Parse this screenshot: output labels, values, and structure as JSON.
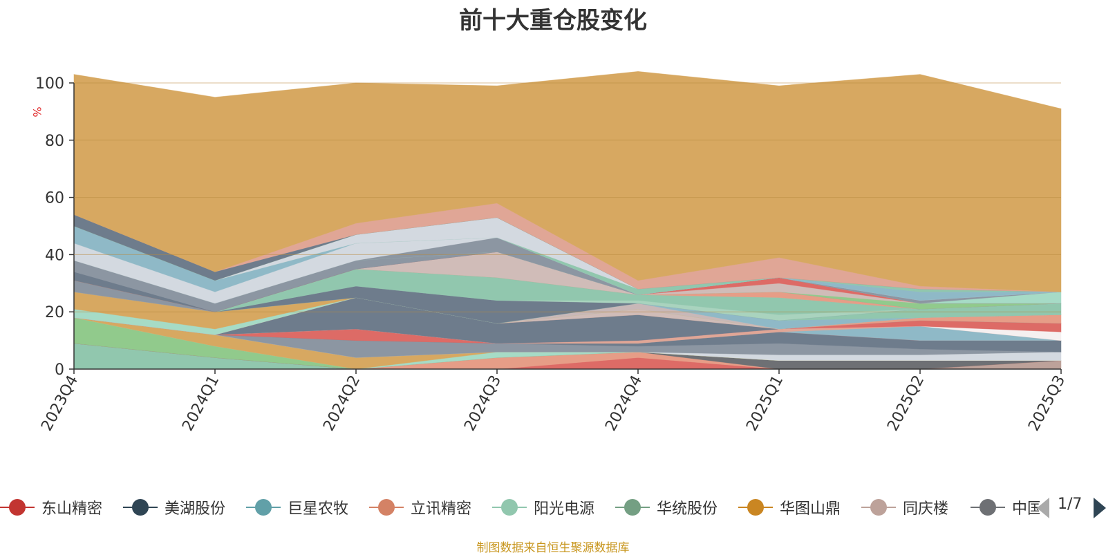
{
  "chart_data": {
    "type": "area",
    "title": "前十大重仓股变化",
    "ylabel": "%",
    "ylim": [
      0,
      100
    ],
    "yticks": [
      0,
      20,
      40,
      60,
      80,
      100
    ],
    "categories": [
      "2023Q4",
      "2024Q1",
      "2024Q2",
      "2024Q3",
      "2024Q4",
      "2025Q1",
      "2025Q2",
      "2025Q3"
    ],
    "series": [
      {
        "name": "layer-1",
        "color": "#91c7ae",
        "values": [
          9,
          4,
          0,
          0,
          0,
          0,
          0,
          0
        ]
      },
      {
        "name": "layer-2",
        "color": "#bda29a",
        "values": [
          0,
          0,
          0,
          0,
          0,
          0,
          0,
          3
        ]
      },
      {
        "name": "layer-3",
        "color": "#dd6b66",
        "values": [
          0,
          0,
          0,
          0,
          4,
          0,
          0,
          0
        ]
      },
      {
        "name": "layer-4",
        "color": "#e69d87",
        "values": [
          0,
          0,
          0,
          4,
          2,
          0,
          0,
          0
        ]
      },
      {
        "name": "layer-5",
        "color": "#6e7074",
        "values": [
          0,
          0,
          0,
          0,
          0,
          3,
          3,
          0
        ]
      },
      {
        "name": "layer-6",
        "color": "#91ca8c",
        "values": [
          9,
          4,
          0,
          0,
          0,
          0,
          0,
          0
        ]
      },
      {
        "name": "layer-7",
        "color": "#a6dbc6",
        "values": [
          0,
          0,
          0,
          2,
          0,
          0,
          0,
          0
        ]
      },
      {
        "name": "layer-8",
        "color": "#d7a861",
        "values": [
          0,
          4,
          4,
          0,
          0,
          0,
          0,
          0
        ]
      },
      {
        "name": "layer-9",
        "color": "#d3d9e0",
        "values": [
          0,
          0,
          0,
          0,
          0,
          2,
          2,
          3
        ]
      },
      {
        "name": "layer-10",
        "color": "#8c96a2",
        "values": [
          0,
          0,
          6,
          3,
          2,
          4,
          2,
          0
        ]
      },
      {
        "name": "layer-11",
        "color": "#6e7c8c",
        "values": [
          0,
          0,
          0,
          0,
          1,
          4,
          3,
          4
        ]
      },
      {
        "name": "layer-12",
        "color": "#dd6b66",
        "values": [
          0,
          0,
          4,
          0,
          0,
          0,
          0,
          0
        ]
      },
      {
        "name": "layer-13",
        "color": "#8fb9c7",
        "values": [
          0,
          0,
          0,
          0,
          0,
          0,
          5,
          0
        ]
      },
      {
        "name": "layer-14",
        "color": "#e0a696",
        "values": [
          0,
          0,
          0,
          0,
          1,
          1,
          0,
          0
        ]
      },
      {
        "name": "layer-15",
        "color": "#f5f0f0",
        "values": [
          0,
          0,
          0,
          0,
          0,
          0,
          0,
          3
        ]
      },
      {
        "name": "layer-16",
        "color": "#dd6b66",
        "values": [
          0,
          0,
          0,
          0,
          0,
          0,
          2,
          3
        ]
      },
      {
        "name": "layer-17",
        "color": "#6e7c8c",
        "values": [
          0,
          0,
          11,
          7,
          9,
          0,
          0,
          0
        ]
      },
      {
        "name": "layer-18",
        "color": "#e69d87",
        "values": [
          0,
          0,
          0,
          0,
          0,
          0,
          1,
          3
        ]
      },
      {
        "name": "layer-19",
        "color": "#d0bcb8",
        "values": [
          0,
          0,
          0,
          0,
          2,
          0,
          0,
          0
        ]
      },
      {
        "name": "layer-20",
        "color": "#a6dbc6",
        "values": [
          3,
          2,
          0,
          0,
          0,
          0,
          0,
          0
        ]
      },
      {
        "name": "layer-21",
        "color": "#d7a861",
        "values": [
          6,
          6,
          0,
          0,
          0,
          0,
          0,
          0
        ]
      },
      {
        "name": "layer-22",
        "color": "#c8b8b8",
        "values": [
          0,
          0,
          0,
          0,
          2,
          0,
          0,
          0
        ]
      },
      {
        "name": "layer-23",
        "color": "#8fb9c7",
        "values": [
          0,
          0,
          0,
          0,
          0,
          3,
          0,
          0
        ]
      },
      {
        "name": "layer-24",
        "color": "#91c7ae",
        "values": [
          0,
          0,
          0,
          0,
          0,
          0,
          3,
          4
        ]
      },
      {
        "name": "layer-25",
        "color": "#6e7c8c",
        "values": [
          0,
          0,
          4,
          8,
          0,
          0,
          0,
          0
        ]
      },
      {
        "name": "layer-26",
        "color": "#a9d3be",
        "values": [
          0,
          0,
          0,
          0,
          1,
          2,
          0,
          0
        ]
      },
      {
        "name": "layer-27",
        "color": "#91c7ae",
        "values": [
          0,
          0,
          6,
          8,
          2,
          6,
          0,
          0
        ]
      },
      {
        "name": "layer-28",
        "color": "#e69d87",
        "values": [
          0,
          0,
          0,
          0,
          0,
          2,
          0,
          0
        ]
      },
      {
        "name": "layer-29",
        "color": "#8c96a2",
        "values": [
          4,
          0,
          0,
          0,
          0,
          0,
          0,
          0
        ]
      },
      {
        "name": "layer-30",
        "color": "#91ca8c",
        "values": [
          0,
          0,
          0,
          0,
          0,
          0,
          2,
          0
        ]
      },
      {
        "name": "layer-31",
        "color": "#d0bcb8",
        "values": [
          0,
          0,
          0,
          9,
          0,
          3,
          0,
          0
        ]
      },
      {
        "name": "layer-32",
        "color": "#dd6b66",
        "values": [
          0,
          0,
          0,
          0,
          0,
          2,
          0,
          0
        ]
      },
      {
        "name": "layer-33",
        "color": "#6e7c8c",
        "values": [
          3,
          0,
          0,
          0,
          0,
          0,
          0,
          0
        ]
      },
      {
        "name": "layer-34",
        "color": "#8c96a2",
        "values": [
          4,
          3,
          3,
          0,
          0,
          0,
          0,
          0
        ]
      },
      {
        "name": "layer-35",
        "color": "#a6dbc6",
        "values": [
          0,
          0,
          0,
          0,
          0,
          0,
          0,
          4
        ]
      },
      {
        "name": "layer-36",
        "color": "#8c96a2",
        "values": [
          0,
          0,
          0,
          5,
          0,
          0,
          1,
          0
        ]
      },
      {
        "name": "layer-37",
        "color": "#d3d9e0",
        "values": [
          6,
          4,
          6,
          0,
          0,
          0,
          0,
          0
        ]
      },
      {
        "name": "layer-38",
        "color": "#8fb9c7",
        "values": [
          6,
          4,
          0,
          0,
          0,
          0,
          3,
          0
        ]
      },
      {
        "name": "layer-39",
        "color": "#91c7ae",
        "values": [
          0,
          0,
          0,
          0,
          2,
          0,
          1,
          0
        ]
      },
      {
        "name": "layer-40",
        "color": "#d3d9e0",
        "values": [
          0,
          0,
          3,
          7,
          0,
          0,
          0,
          0
        ]
      },
      {
        "name": "layer-41",
        "color": "#91ca8c",
        "values": [
          0,
          0,
          0,
          0,
          0,
          0,
          0,
          0
        ]
      },
      {
        "name": "layer-42",
        "color": "#6e7c8c",
        "values": [
          4,
          3,
          0,
          0,
          0,
          0,
          0,
          0
        ]
      },
      {
        "name": "layer-43",
        "color": "#e0a696",
        "values": [
          0,
          0,
          4,
          5,
          3,
          7,
          1,
          0
        ]
      },
      {
        "name": "layer-44",
        "color": "#d7a861",
        "values": [
          49,
          61,
          49,
          41,
          73,
          60,
          74,
          64
        ]
      }
    ],
    "legend": [
      {
        "name": "东山精密",
        "color": "#c23531"
      },
      {
        "name": "美湖股份",
        "color": "#2f4554"
      },
      {
        "name": "巨星农牧",
        "color": "#61a0a8"
      },
      {
        "name": "立讯精密",
        "color": "#d48265"
      },
      {
        "name": "阳光电源",
        "color": "#91c7ae"
      },
      {
        "name": "华统股份",
        "color": "#749f83"
      },
      {
        "name": "华图山鼎",
        "color": "#ca8622"
      },
      {
        "name": "同庆楼",
        "color": "#bda29a"
      },
      {
        "name": "中国",
        "color": "#6e7074"
      }
    ],
    "legend_page": "1/7",
    "source_note": "制图数据来自恒生聚源数据库"
  }
}
